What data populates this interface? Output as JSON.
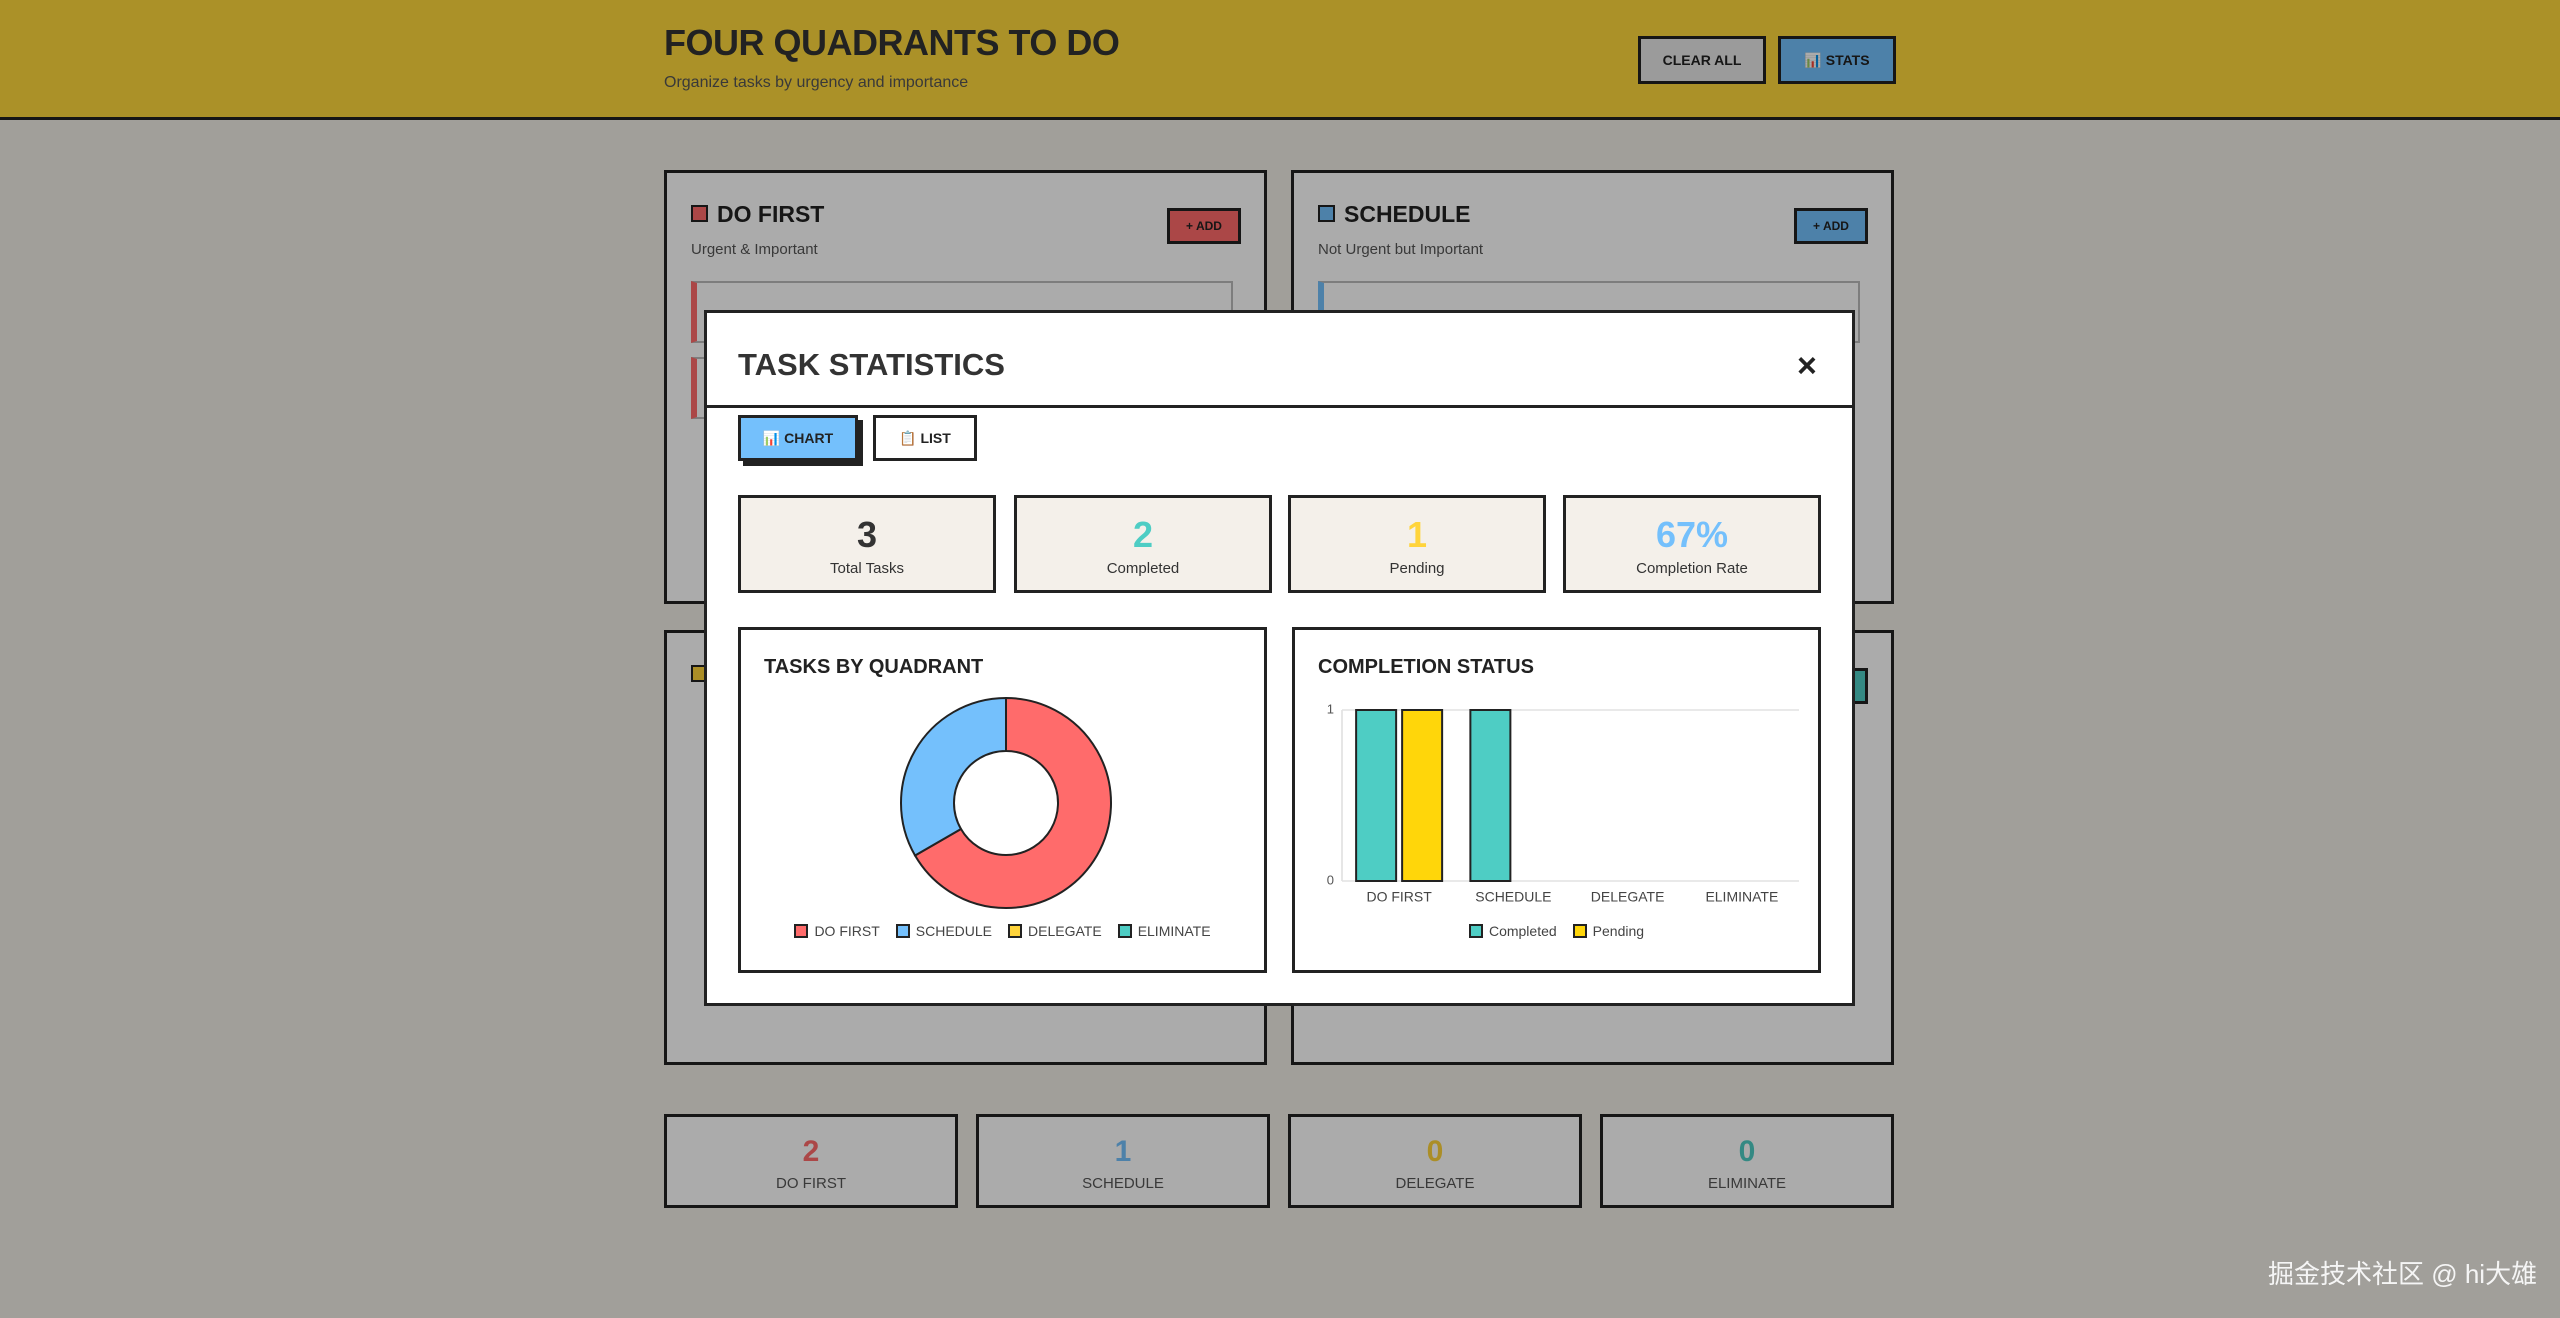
{
  "header": {
    "title": "FOUR QUADRANTS TO DO",
    "subtitle": "Organize tasks by urgency and importance",
    "buttons": [
      "CLEAR ALL",
      "📊 STATS"
    ]
  },
  "quadrants": [
    {
      "title": "DO FIRST",
      "subtitle": "Urgent & Important",
      "add": "+ ADD"
    },
    {
      "title": "SCHEDULE",
      "subtitle": "Not Urgent but Important",
      "add": "+ ADD"
    }
  ],
  "summary": [
    {
      "count": 2,
      "label": "DO FIRST"
    },
    {
      "count": 1,
      "label": "SCHEDULE"
    },
    {
      "count": 0,
      "label": "DELEGATE"
    },
    {
      "count": 0,
      "label": "ELIMINATE"
    }
  ],
  "modal": {
    "title": "TASK STATISTICS",
    "close": "×",
    "tabs": [
      "📊 CHART",
      "📋 LIST"
    ],
    "stats": [
      {
        "value": 3,
        "label": "Total Tasks"
      },
      {
        "value": 2,
        "label": "Completed"
      },
      {
        "value": 1,
        "label": "Pending"
      },
      {
        "value": "67%",
        "label": "Completion Rate"
      }
    ]
  },
  "chart_data": [
    {
      "type": "pie",
      "title": "TASKS BY QUADRANT",
      "categories": [
        "DO FIRST",
        "SCHEDULE",
        "DELEGATE",
        "ELIMINATE"
      ],
      "values": [
        2,
        1,
        0,
        0
      ],
      "colors": [
        "#ff6b6b",
        "#74c0fc",
        "#ffd43b",
        "#4ecdc4"
      ]
    },
    {
      "type": "bar",
      "title": "COMPLETION STATUS",
      "categories": [
        "DO FIRST",
        "SCHEDULE",
        "DELEGATE",
        "ELIMINATE"
      ],
      "series": [
        {
          "name": "Completed",
          "color": "#4ecdc4",
          "values": [
            1,
            1,
            0,
            0
          ]
        },
        {
          "name": "Pending",
          "color": "#ffd60a",
          "values": [
            1,
            0,
            0,
            0
          ]
        }
      ],
      "ylim": [
        0,
        1
      ],
      "yticks": [
        0,
        1
      ],
      "grid": true
    }
  ],
  "watermark": "掘金技术社区 @ hi大雄"
}
